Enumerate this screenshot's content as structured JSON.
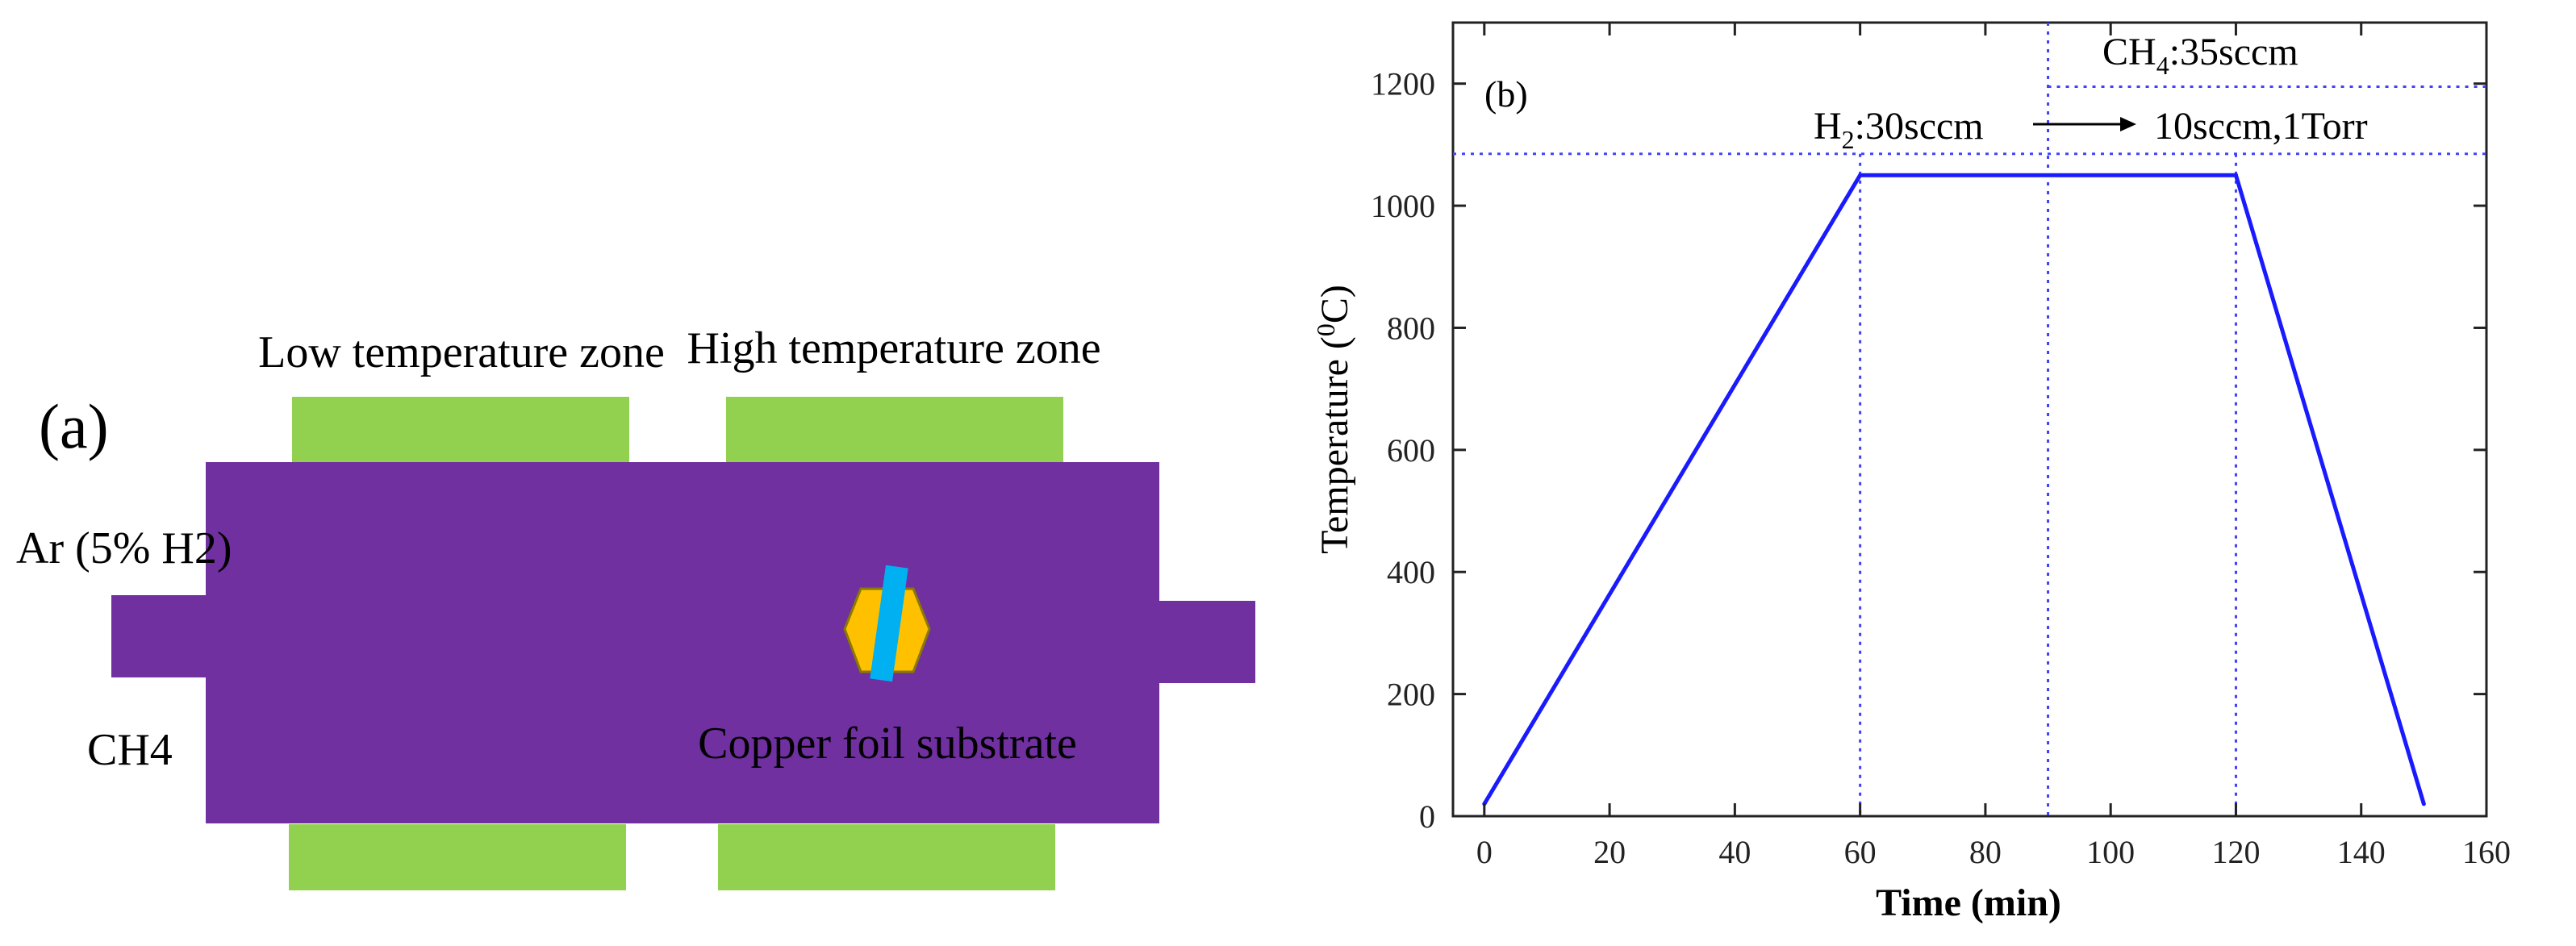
{
  "panel_a": {
    "label": "(a)",
    "low_zone_label": "Low temperature zone",
    "high_zone_label": "High temperature zone",
    "gas_label_1": "Ar (5% H2)",
    "gas_label_2": "CH4",
    "substrate_label": "Copper foil substrate",
    "colors": {
      "tube": "#7030A0",
      "heater": "#92D050",
      "substrate_hex": "#FFC000",
      "foil": "#00B0F0"
    }
  },
  "chart_data": {
    "type": "line",
    "panel_label": "(b)",
    "xlabel": "Time (min)",
    "ylabel_prefix": "Temperature (",
    "ylabel_sup": "0",
    "ylabel_suffix": "C)",
    "xlim": [
      -5,
      160
    ],
    "ylim": [
      0,
      1300
    ],
    "xticks": [
      0,
      20,
      40,
      60,
      80,
      100,
      120,
      140,
      160
    ],
    "yticks": [
      0,
      200,
      400,
      600,
      800,
      1000,
      1200
    ],
    "grid": false,
    "series": [
      {
        "color": "#1a1aff",
        "x": [
          0,
          60,
          120,
          150
        ],
        "y": [
          20,
          1050,
          1050,
          20
        ]
      }
    ],
    "guide_lines": {
      "vertical_x": [
        60,
        90,
        120
      ],
      "h2_level_y": 1085,
      "ch4_level_y": 1195,
      "ch4_start_x": 90,
      "color": "#4040ff"
    },
    "annotations": {
      "ch4_main": "CH",
      "ch4_sub": "4",
      "ch4_rest": ":35sccm",
      "h2_main": "H",
      "h2_sub": "2",
      "h2_rest": ":30sccm",
      "after_arrow": "10sccm,1Torr"
    }
  }
}
